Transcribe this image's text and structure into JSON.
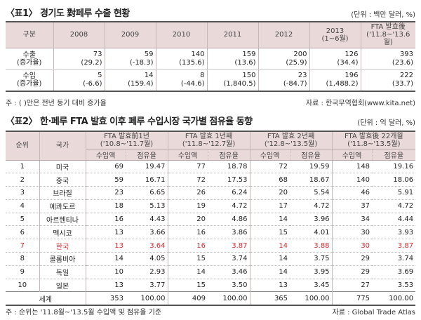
{
  "table1": {
    "title": "〈표1〉 경기도 對페루 수출 현황",
    "unit": "(단위 : 백만 달러, %)",
    "header": [
      "구분",
      "2008",
      "2009",
      "2010",
      "2011",
      "2012",
      "2013\n(1~6월)",
      "FTA 발효後\n('11.8~'13.6월)"
    ],
    "rows": [
      {
        "label": "수출\n(증가율)",
        "values": [
          "73",
          "59",
          "140",
          "159",
          "200",
          "126",
          "393"
        ],
        "rates": [
          "(29.2)",
          "(-18.3)",
          "(135.6)",
          "(13.6)",
          "(25.9)",
          "(34.4)",
          "(23.6)"
        ]
      },
      {
        "label": "수입\n(증가율)",
        "values": [
          "5",
          "14",
          "8",
          "150",
          "23",
          "196",
          "222"
        ],
        "rates": [
          "(-6.6)",
          "(159.4)",
          "(-44.6)",
          "(1,840.5)",
          "(-84.7)",
          "(1,488.2)",
          "(33.7)"
        ]
      }
    ],
    "note_left": "주 : ( )안은 전년 동기 대비 증가율",
    "note_right": "자료 : 한국무역협회(www.kita.net)"
  },
  "table2": {
    "title": "〈표2〉 한·페루 FTA 발효 이후 페루 수입시장 국가별 점유율 동향",
    "unit": "(단위 : 억 달러, %)",
    "header_rank": "순위",
    "header_country": "국가",
    "periods": [
      "FTA 발효前1년\n('10.8~'11.7월)",
      "FTA 발효 1년째\n('11.8~'12.7월)",
      "FTA 발효 2년째\n('12.8~'13.5월)",
      "FTA 발효後 22개월\n('11.8~'13.5월)"
    ],
    "sub_import": "수입액",
    "sub_share": "점유율",
    "rows": [
      {
        "rank": "1",
        "country": "미국",
        "cells": [
          "69",
          "19.47",
          "77",
          "18.78",
          "72",
          "19.59",
          "148",
          "19.16"
        ]
      },
      {
        "rank": "2",
        "country": "중국",
        "cells": [
          "59",
          "16.71",
          "72",
          "17.53",
          "68",
          "18.67",
          "140",
          "18.06"
        ]
      },
      {
        "rank": "3",
        "country": "브라질",
        "cells": [
          "23",
          "6.65",
          "26",
          "6.24",
          "20",
          "5.54",
          "46",
          "5.91"
        ]
      },
      {
        "rank": "4",
        "country": "에콰도르",
        "cells": [
          "18",
          "5.13",
          "19",
          "4.72",
          "17",
          "4.72",
          "37",
          "4.72"
        ]
      },
      {
        "rank": "5",
        "country": "아르헨티나",
        "cells": [
          "16",
          "4.43",
          "20",
          "4.86",
          "14",
          "3.96",
          "34",
          "4.44"
        ]
      },
      {
        "rank": "6",
        "country": "멕시코",
        "cells": [
          "13",
          "3.66",
          "16",
          "3.86",
          "15",
          "4.01",
          "30",
          "3.93"
        ]
      },
      {
        "rank": "7",
        "country": "한국",
        "cells": [
          "13",
          "3.64",
          "16",
          "3.87",
          "14",
          "3.88",
          "30",
          "3.87"
        ],
        "highlight": true
      },
      {
        "rank": "8",
        "country": "콜롬비아",
        "cells": [
          "14",
          "4.05",
          "15",
          "3.74",
          "14",
          "3.75",
          "29",
          "3.74"
        ]
      },
      {
        "rank": "9",
        "country": "독일",
        "cells": [
          "10",
          "2.93",
          "14",
          "3.46",
          "14",
          "3.95",
          "29",
          "3.69"
        ]
      },
      {
        "rank": "10",
        "country": "일본",
        "cells": [
          "13",
          "3.77",
          "15",
          "3.50",
          "13",
          "3.45",
          "27",
          "3.53"
        ]
      }
    ],
    "world": {
      "label": "세계",
      "cells": [
        "353",
        "100.00",
        "409",
        "100.00",
        "365",
        "100.00",
        "775",
        "100.00"
      ]
    },
    "note_left": "주 : 순위는 '11.8월~'13.5월 수입액 및 점유율 기준",
    "note_right": "자료 : Global Trade Atlas"
  }
}
